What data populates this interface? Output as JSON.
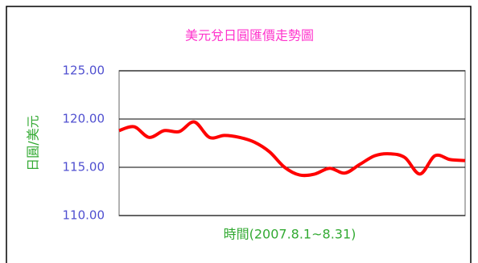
{
  "chart_data": {
    "type": "line",
    "title": "美元兌日圓匯價走勢圖",
    "x_label": "時間(2007.8.1~8.31)",
    "y_label": "日圓/美元",
    "categories": [
      null,
      null,
      null,
      null,
      null,
      null,
      null,
      null,
      null,
      null,
      null,
      null,
      null,
      null,
      null,
      null,
      null,
      null,
      null,
      null,
      null,
      null,
      null,
      null
    ],
    "series": [
      {
        "name": null,
        "color": "#ff0000",
        "values": [
          118.8,
          119.2,
          118.1,
          118.8,
          118.7,
          119.7,
          118.1,
          118.3,
          118.1,
          117.6,
          116.6,
          115.0,
          114.2,
          114.3,
          114.9,
          114.4,
          115.3,
          116.2,
          116.4,
          116.0,
          114.3,
          116.2,
          115.8,
          115.7
        ]
      }
    ],
    "ylim": [
      110,
      125
    ],
    "yticks": [
      {
        "value": 110,
        "label": "110.00"
      },
      {
        "value": 115,
        "label": "115.00"
      },
      {
        "value": 120,
        "label": "120.00"
      },
      {
        "value": 125,
        "label": "125.00"
      }
    ],
    "grid": true
  }
}
